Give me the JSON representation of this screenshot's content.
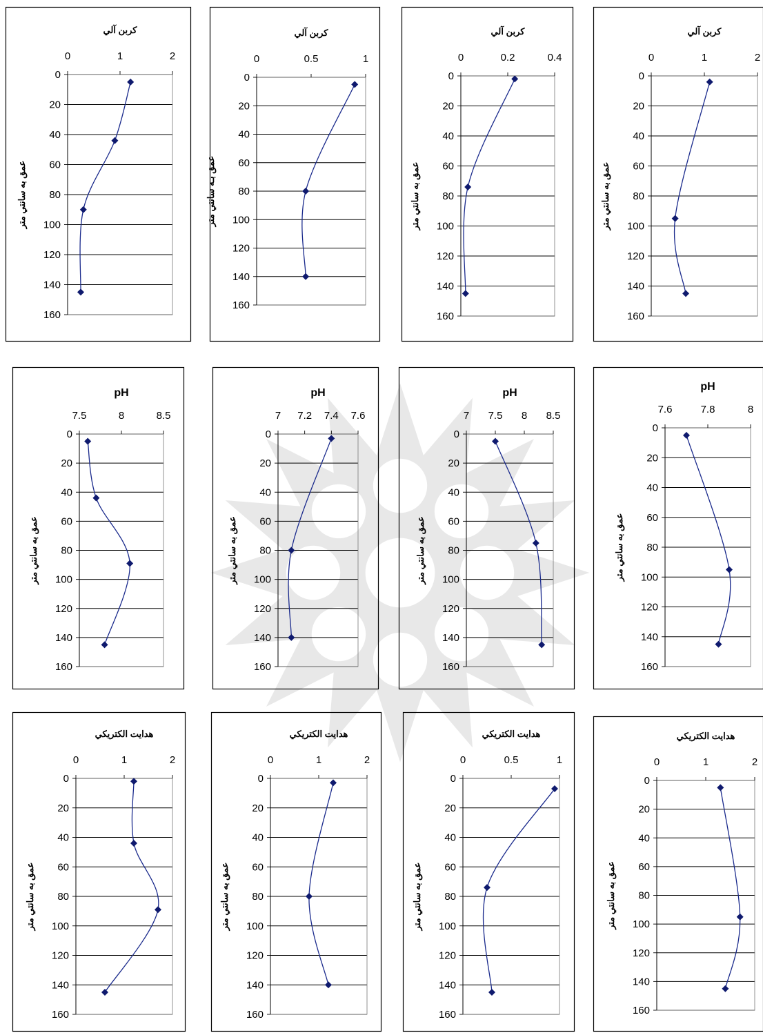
{
  "chart_data": [
    {
      "type": "line",
      "title": "كربن آلي",
      "ylabel": "عمق به سانتي متر",
      "xlim": [
        0,
        2
      ],
      "xticks": [
        "0",
        "1",
        "2"
      ],
      "ylim": [
        0,
        160
      ],
      "yticks": [
        "0",
        "20",
        "40",
        "60",
        "80",
        "100",
        "120",
        "140",
        "160"
      ],
      "series": [
        {
          "x": [
            1.2,
            0.9,
            0.3,
            0.25
          ],
          "y": [
            5,
            44,
            90,
            145
          ]
        }
      ]
    },
    {
      "type": "line",
      "title": "كربن آلي",
      "ylabel": "عمق بـه سانتي متر",
      "xlim": [
        0,
        1
      ],
      "xticks": [
        "0",
        "0.5",
        "1"
      ],
      "ylim": [
        0,
        160
      ],
      "yticks": [
        "0",
        "20",
        "40",
        "60",
        "80",
        "100",
        "120",
        "140",
        "160"
      ],
      "series": [
        {
          "x": [
            0.9,
            0.45,
            0.45
          ],
          "y": [
            5,
            80,
            140
          ]
        }
      ]
    },
    {
      "type": "line",
      "title": "كربن آلي",
      "ylabel": "عمق به سانتي متر",
      "xlim": [
        0,
        0.4
      ],
      "xticks": [
        "0",
        "0.2",
        "0.4"
      ],
      "ylim": [
        0,
        160
      ],
      "yticks": [
        "0",
        "20",
        "40",
        "60",
        "80",
        "100",
        "120",
        "140",
        "160"
      ],
      "series": [
        {
          "x": [
            0.23,
            0.03,
            0.02
          ],
          "y": [
            2,
            74,
            145
          ]
        }
      ]
    },
    {
      "type": "line",
      "title": "كربن آلي",
      "ylabel": "عمق به سانتي متر",
      "xlim": [
        0,
        2
      ],
      "xticks": [
        "0",
        "1",
        "2"
      ],
      "ylim": [
        0,
        160
      ],
      "yticks": [
        "0",
        "20",
        "40",
        "60",
        "80",
        "100",
        "120",
        "140",
        "160"
      ],
      "series": [
        {
          "x": [
            1.1,
            0.45,
            0.65
          ],
          "y": [
            4,
            95,
            145
          ]
        }
      ]
    },
    {
      "type": "line",
      "title": "pH",
      "ylabel": "عمق به سانتي متر",
      "xlim": [
        7.5,
        8.5
      ],
      "xticks": [
        "7.5",
        "8",
        "8.5"
      ],
      "ylim": [
        0,
        160
      ],
      "yticks": [
        "0",
        "20",
        "40",
        "60",
        "80",
        "100",
        "120",
        "140",
        "160"
      ],
      "series": [
        {
          "x": [
            7.6,
            7.7,
            8.1,
            7.8
          ],
          "y": [
            5,
            44,
            89,
            145
          ]
        }
      ]
    },
    {
      "type": "line",
      "title": "pH",
      "ylabel": "عمق به سانتي متر",
      "xlim": [
        7,
        7.6
      ],
      "xticks": [
        "7",
        "7.2",
        "7.4",
        "7.6"
      ],
      "ylim": [
        0,
        160
      ],
      "yticks": [
        "0",
        "20",
        "40",
        "60",
        "80",
        "100",
        "120",
        "140",
        "160"
      ],
      "series": [
        {
          "x": [
            7.4,
            7.1,
            7.1
          ],
          "y": [
            3,
            80,
            140
          ]
        }
      ]
    },
    {
      "type": "line",
      "title": "pH",
      "ylabel": "عمق به سانتي متر",
      "xlim": [
        7,
        8.5
      ],
      "xticks": [
        "7",
        "7.5",
        "8",
        "8.5"
      ],
      "ylim": [
        0,
        160
      ],
      "yticks": [
        "0",
        "20",
        "40",
        "60",
        "80",
        "100",
        "120",
        "140",
        "160"
      ],
      "series": [
        {
          "x": [
            7.5,
            8.2,
            8.3
          ],
          "y": [
            5,
            75,
            145
          ]
        }
      ]
    },
    {
      "type": "line",
      "title": "pH",
      "ylabel": "عمق به سانتي متر",
      "xlim": [
        7.6,
        8
      ],
      "xticks": [
        "7.6",
        "7.8",
        "8"
      ],
      "ylim": [
        0,
        160
      ],
      "yticks": [
        "0",
        "20",
        "40",
        "60",
        "80",
        "100",
        "120",
        "140",
        "160"
      ],
      "series": [
        {
          "x": [
            7.7,
            7.9,
            7.85
          ],
          "y": [
            5,
            95,
            145
          ]
        }
      ]
    },
    {
      "type": "line",
      "title": "هدايت الكتريكي",
      "ylabel": "عمق به سانتي متر",
      "xlim": [
        0,
        2
      ],
      "xticks": [
        "0",
        "1",
        "2"
      ],
      "ylim": [
        0,
        160
      ],
      "yticks": [
        "0",
        "20",
        "40",
        "60",
        "80",
        "100",
        "120",
        "140",
        "160"
      ],
      "series": [
        {
          "x": [
            1.2,
            1.2,
            1.7,
            0.6
          ],
          "y": [
            2,
            44,
            89,
            145
          ]
        }
      ]
    },
    {
      "type": "line",
      "title": "هدايت الكتريكي",
      "ylabel": "عمق به سانتي متر",
      "xlim": [
        0,
        2
      ],
      "xticks": [
        "0",
        "1",
        "2"
      ],
      "ylim": [
        0,
        160
      ],
      "yticks": [
        "0",
        "20",
        "40",
        "60",
        "80",
        "100",
        "120",
        "140",
        "160"
      ],
      "series": [
        {
          "x": [
            1.3,
            0.8,
            1.2
          ],
          "y": [
            3,
            80,
            140
          ]
        }
      ]
    },
    {
      "type": "line",
      "title": "هدايت الكتريكي",
      "ylabel": "عمق به سانتي متر",
      "xlim": [
        0,
        1
      ],
      "xticks": [
        "0",
        "0.5",
        "1"
      ],
      "ylim": [
        0,
        160
      ],
      "yticks": [
        "0",
        "20",
        "40",
        "60",
        "80",
        "100",
        "120",
        "140",
        "160"
      ],
      "series": [
        {
          "x": [
            0.95,
            0.25,
            0.3
          ],
          "y": [
            7,
            74,
            145
          ]
        }
      ]
    },
    {
      "type": "line",
      "title": "هدايت الكتريكي",
      "ylabel": "عمق به سانتي متر",
      "xlim": [
        0,
        2
      ],
      "xticks": [
        "0",
        "1",
        "2"
      ],
      "ylim": [
        0,
        160
      ],
      "yticks": [
        "0",
        "20",
        "40",
        "60",
        "80",
        "100",
        "120",
        "140",
        "160"
      ],
      "series": [
        {
          "x": [
            1.3,
            1.7,
            1.4
          ],
          "y": [
            5,
            95,
            145
          ]
        }
      ]
    }
  ]
}
